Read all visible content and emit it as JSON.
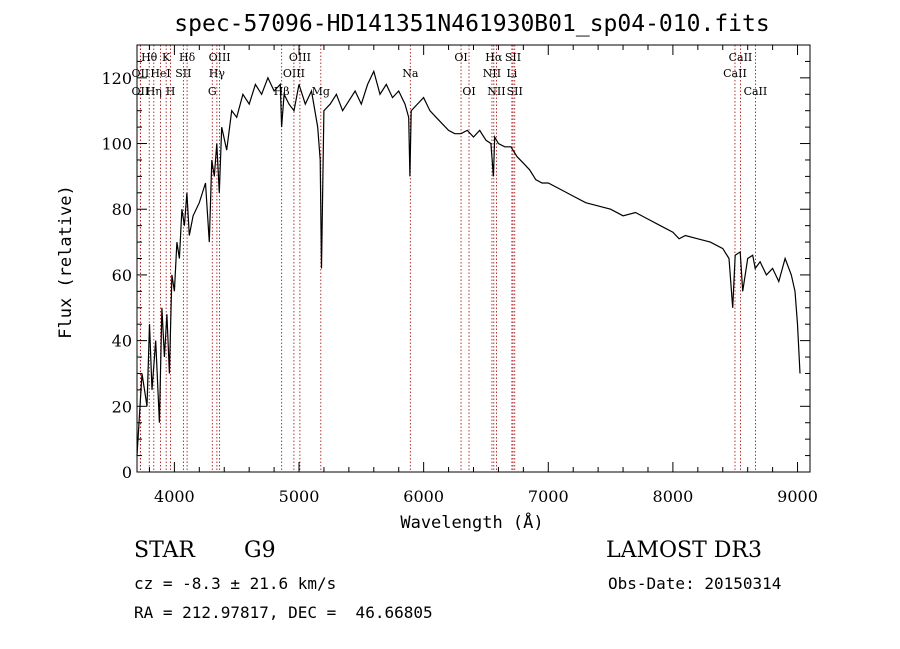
{
  "chart_data": {
    "type": "line",
    "title": "spec-57096-HD141351N461930B01_sp04-010.fits",
    "xlabel": "Wavelength (Å)",
    "ylabel": "Flux (relative)",
    "xlim": [
      3700,
      9100
    ],
    "ylim": [
      0,
      130
    ],
    "xticks": [
      4000,
      5000,
      6000,
      7000,
      8000,
      9000
    ],
    "yticks": [
      0,
      20,
      40,
      60,
      80,
      100,
      120
    ],
    "xminor_step": 200,
    "yminor_step": 5,
    "grid": false,
    "series": [
      {
        "name": "spectrum",
        "x": [
          3700,
          3740,
          3780,
          3800,
          3820,
          3850,
          3880,
          3900,
          3920,
          3940,
          3960,
          3980,
          4000,
          4020,
          4040,
          4060,
          4080,
          4100,
          4120,
          4150,
          4200,
          4250,
          4280,
          4300,
          4320,
          4340,
          4360,
          4380,
          4420,
          4460,
          4500,
          4550,
          4600,
          4650,
          4700,
          4750,
          4800,
          4850,
          4860,
          4880,
          4920,
          4960,
          5000,
          5050,
          5100,
          5150,
          5170,
          5180,
          5200,
          5250,
          5300,
          5350,
          5400,
          5450,
          5500,
          5550,
          5600,
          5650,
          5700,
          5750,
          5800,
          5850,
          5880,
          5890,
          5900,
          5950,
          6000,
          6050,
          6100,
          6150,
          6200,
          6250,
          6300,
          6350,
          6400,
          6450,
          6500,
          6540,
          6560,
          6570,
          6600,
          6650,
          6700,
          6750,
          6800,
          6850,
          6900,
          6950,
          7000,
          7100,
          7200,
          7300,
          7400,
          7500,
          7600,
          7700,
          7800,
          7900,
          8000,
          8050,
          8100,
          8200,
          8300,
          8400,
          8450,
          8480,
          8500,
          8540,
          8560,
          8600,
          8640,
          8660,
          8700,
          8750,
          8800,
          8850,
          8900,
          8950,
          8980,
          9000,
          9020
        ],
        "values": [
          5,
          30,
          20,
          45,
          25,
          40,
          15,
          50,
          35,
          48,
          30,
          60,
          55,
          70,
          65,
          80,
          75,
          85,
          72,
          78,
          82,
          88,
          70,
          95,
          90,
          100,
          85,
          105,
          98,
          110,
          108,
          115,
          112,
          118,
          115,
          120,
          116,
          118,
          105,
          115,
          112,
          110,
          118,
          112,
          116,
          105,
          95,
          62,
          110,
          112,
          115,
          110,
          113,
          116,
          112,
          118,
          122,
          115,
          118,
          114,
          116,
          112,
          108,
          90,
          110,
          112,
          114,
          110,
          108,
          106,
          104,
          103,
          103,
          104,
          102,
          104,
          101,
          100,
          90,
          102,
          100,
          99,
          99,
          96,
          94,
          92,
          89,
          88,
          88,
          86,
          84,
          82,
          81,
          80,
          78,
          79,
          77,
          75,
          73,
          71,
          72,
          71,
          70,
          68,
          65,
          50,
          66,
          67,
          55,
          65,
          66,
          62,
          64,
          60,
          62,
          58,
          65,
          60,
          55,
          45,
          30
        ],
        "color": "#000000"
      }
    ],
    "lines": [
      {
        "name": "Hθ",
        "x": 3798,
        "row": 1
      },
      {
        "name": "OII",
        "x": 3727,
        "row": 2
      },
      {
        "name": "OII",
        "x": 3727,
        "row": 3
      },
      {
        "name": "Hη",
        "x": 3835,
        "row": 3
      },
      {
        "name": "K",
        "x": 3934,
        "row": 1
      },
      {
        "name": "HeI",
        "x": 3889,
        "row": 2
      },
      {
        "name": "H",
        "x": 3969,
        "row": 3
      },
      {
        "name": "SII",
        "x": 4072,
        "row": 2
      },
      {
        "name": "Hδ",
        "x": 4102,
        "row": 1
      },
      {
        "name": "OIII",
        "x": 4363,
        "row": 1
      },
      {
        "name": "Hγ",
        "x": 4341,
        "row": 2
      },
      {
        "name": "G",
        "x": 4304,
        "row": 3
      },
      {
        "name": "OIII",
        "x": 5007,
        "row": 1
      },
      {
        "name": "OIII",
        "x": 4959,
        "row": 2
      },
      {
        "name": "Hβ",
        "x": 4861,
        "row": 3
      },
      {
        "name": "Mg",
        "x": 5175,
        "row": 3
      },
      {
        "name": "Na",
        "x": 5893,
        "row": 2
      },
      {
        "name": "OI",
        "x": 6300,
        "row": 1
      },
      {
        "name": "OI",
        "x": 6364,
        "row": 3
      },
      {
        "name": "Hα",
        "x": 6563,
        "row": 1
      },
      {
        "name": "NII",
        "x": 6548,
        "row": 2
      },
      {
        "name": "NII",
        "x": 6584,
        "row": 3
      },
      {
        "name": "SII",
        "x": 6717,
        "row": 1
      },
      {
        "name": "Li",
        "x": 6708,
        "row": 2
      },
      {
        "name": "SII",
        "x": 6731,
        "row": 3
      },
      {
        "name": "CaII",
        "x": 8542,
        "row": 1
      },
      {
        "name": "CaII",
        "x": 8498,
        "row": 2
      },
      {
        "name": "CaII",
        "x": 8662,
        "row": 3
      }
    ]
  },
  "info": {
    "object_class": "STAR",
    "subclass": "G9",
    "cz": "cz = -8.3 ± 21.6 km/s",
    "coords": "RA = 212.97817, DEC =  46.66805",
    "survey": "LAMOST DR3",
    "obs_date": "Obs-Date: 20150314"
  }
}
